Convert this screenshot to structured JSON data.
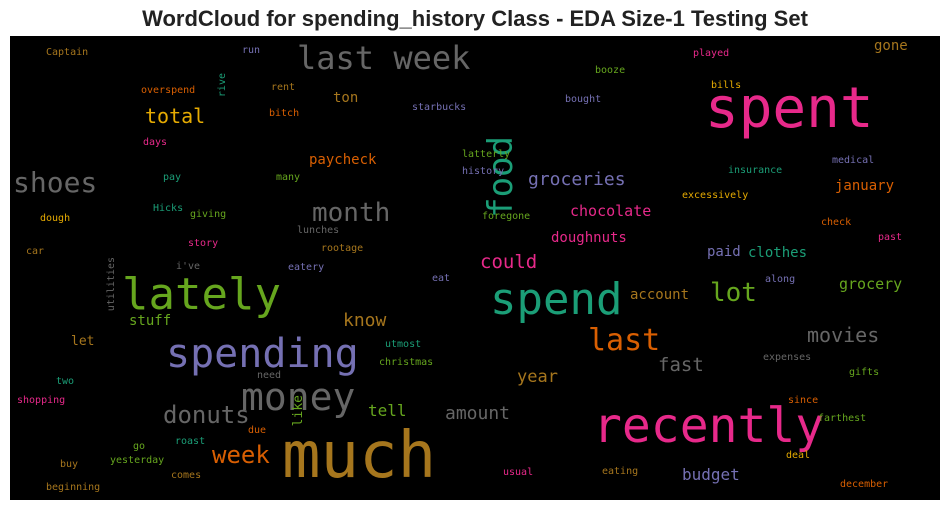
{
  "chart_data": {
    "type": "wordcloud",
    "title": "WordCloud for spending_history Class - EDA Size-1 Testing Set",
    "background": "#000000",
    "words": [
      {
        "text": "much",
        "color": "#a6761d"
      },
      {
        "text": "spent",
        "color": "#e7298a"
      },
      {
        "text": "spend",
        "color": "#1b9e77"
      },
      {
        "text": "recently",
        "color": "#e7298a"
      },
      {
        "text": "lately",
        "color": "#66a61e"
      },
      {
        "text": "spending",
        "color": "#7570b3"
      },
      {
        "text": "money",
        "color": "#666666"
      },
      {
        "text": "last week",
        "color": "#666666"
      },
      {
        "text": "food",
        "color": "#1b9e77"
      },
      {
        "text": "last",
        "color": "#d95f02"
      },
      {
        "text": "shoes",
        "color": "#666666"
      },
      {
        "text": "lot",
        "color": "#66a61e"
      },
      {
        "text": "month",
        "color": "#666666"
      },
      {
        "text": "donuts",
        "color": "#666666"
      },
      {
        "text": "week",
        "color": "#d95f02"
      },
      {
        "text": "total",
        "color": "#e6ab02"
      },
      {
        "text": "could",
        "color": "#e7298a"
      },
      {
        "text": "groceries",
        "color": "#7570b3"
      },
      {
        "text": "movies",
        "color": "#666666"
      },
      {
        "text": "know",
        "color": "#a6761d"
      },
      {
        "text": "amount",
        "color": "#666666"
      },
      {
        "text": "fast",
        "color": "#666666"
      },
      {
        "text": "year",
        "color": "#a6761d"
      },
      {
        "text": "tell",
        "color": "#66a61e"
      },
      {
        "text": "budget",
        "color": "#7570b3"
      },
      {
        "text": "chocolate",
        "color": "#e7298a"
      },
      {
        "text": "doughnuts",
        "color": "#e7298a"
      },
      {
        "text": "paycheck",
        "color": "#d95f02"
      },
      {
        "text": "paid",
        "color": "#7570b3"
      },
      {
        "text": "clothes",
        "color": "#1b9e77"
      },
      {
        "text": "grocery",
        "color": "#66a61e"
      },
      {
        "text": "january",
        "color": "#d95f02"
      },
      {
        "text": "account",
        "color": "#a6761d"
      },
      {
        "text": "stuff",
        "color": "#66a61e"
      },
      {
        "text": "ton",
        "color": "#a6761d"
      },
      {
        "text": "gone",
        "color": "#a6761d"
      },
      {
        "text": "let",
        "color": "#a6761d"
      },
      {
        "text": "like",
        "color": "#66a61e"
      },
      {
        "text": "Captain",
        "color": "#a6761d"
      },
      {
        "text": "run",
        "color": "#7570b3"
      },
      {
        "text": "rive",
        "color": "#1b9e77"
      },
      {
        "text": "rent",
        "color": "#a6761d"
      },
      {
        "text": "overspend",
        "color": "#d95f02"
      },
      {
        "text": "bitch",
        "color": "#d95f02"
      },
      {
        "text": "days",
        "color": "#e7298a"
      },
      {
        "text": "pay",
        "color": "#1b9e77"
      },
      {
        "text": "many",
        "color": "#66a61e"
      },
      {
        "text": "Hicks",
        "color": "#1b9e77"
      },
      {
        "text": "giving",
        "color": "#66a61e"
      },
      {
        "text": "dough",
        "color": "#e6ab02"
      },
      {
        "text": "story",
        "color": "#e7298a"
      },
      {
        "text": "lunches",
        "color": "#666666"
      },
      {
        "text": "rootage",
        "color": "#a6761d"
      },
      {
        "text": "car",
        "color": "#a6761d"
      },
      {
        "text": "utilities",
        "color": "#666666"
      },
      {
        "text": "i've",
        "color": "#666666"
      },
      {
        "text": "eatery",
        "color": "#7570b3"
      },
      {
        "text": "booze",
        "color": "#66a61e"
      },
      {
        "text": "played",
        "color": "#e7298a"
      },
      {
        "text": "bills",
        "color": "#e6ab02"
      },
      {
        "text": "starbucks",
        "color": "#7570b3"
      },
      {
        "text": "bought",
        "color": "#7570b3"
      },
      {
        "text": "latterly",
        "color": "#66a61e"
      },
      {
        "text": "history",
        "color": "#7570b3"
      },
      {
        "text": "insurance",
        "color": "#1b9e77"
      },
      {
        "text": "medical",
        "color": "#7570b3"
      },
      {
        "text": "excessively",
        "color": "#e6ab02"
      },
      {
        "text": "foregone",
        "color": "#66a61e"
      },
      {
        "text": "check",
        "color": "#d95f02"
      },
      {
        "text": "past",
        "color": "#e7298a"
      },
      {
        "text": "eat",
        "color": "#7570b3"
      },
      {
        "text": "along",
        "color": "#7570b3"
      },
      {
        "text": "utmost",
        "color": "#1b9e77"
      },
      {
        "text": "christmas",
        "color": "#66a61e"
      },
      {
        "text": "need",
        "color": "#666666"
      },
      {
        "text": "expenses",
        "color": "#666666"
      },
      {
        "text": "gifts",
        "color": "#66a61e"
      },
      {
        "text": "two",
        "color": "#1b9e77"
      },
      {
        "text": "shopping",
        "color": "#e7298a"
      },
      {
        "text": "since",
        "color": "#d95f02"
      },
      {
        "text": "farthest",
        "color": "#66a61e"
      },
      {
        "text": "go",
        "color": "#66a61e"
      },
      {
        "text": "roast",
        "color": "#1b9e77"
      },
      {
        "text": "due",
        "color": "#d95f02"
      },
      {
        "text": "deal",
        "color": "#e6ab02"
      },
      {
        "text": "buy",
        "color": "#a6761d"
      },
      {
        "text": "yesterday",
        "color": "#66a61e"
      },
      {
        "text": "comes",
        "color": "#a6761d"
      },
      {
        "text": "usual",
        "color": "#e7298a"
      },
      {
        "text": "eating",
        "color": "#a6761d"
      },
      {
        "text": "beginning",
        "color": "#a6761d"
      },
      {
        "text": "december",
        "color": "#d95f02"
      }
    ]
  }
}
